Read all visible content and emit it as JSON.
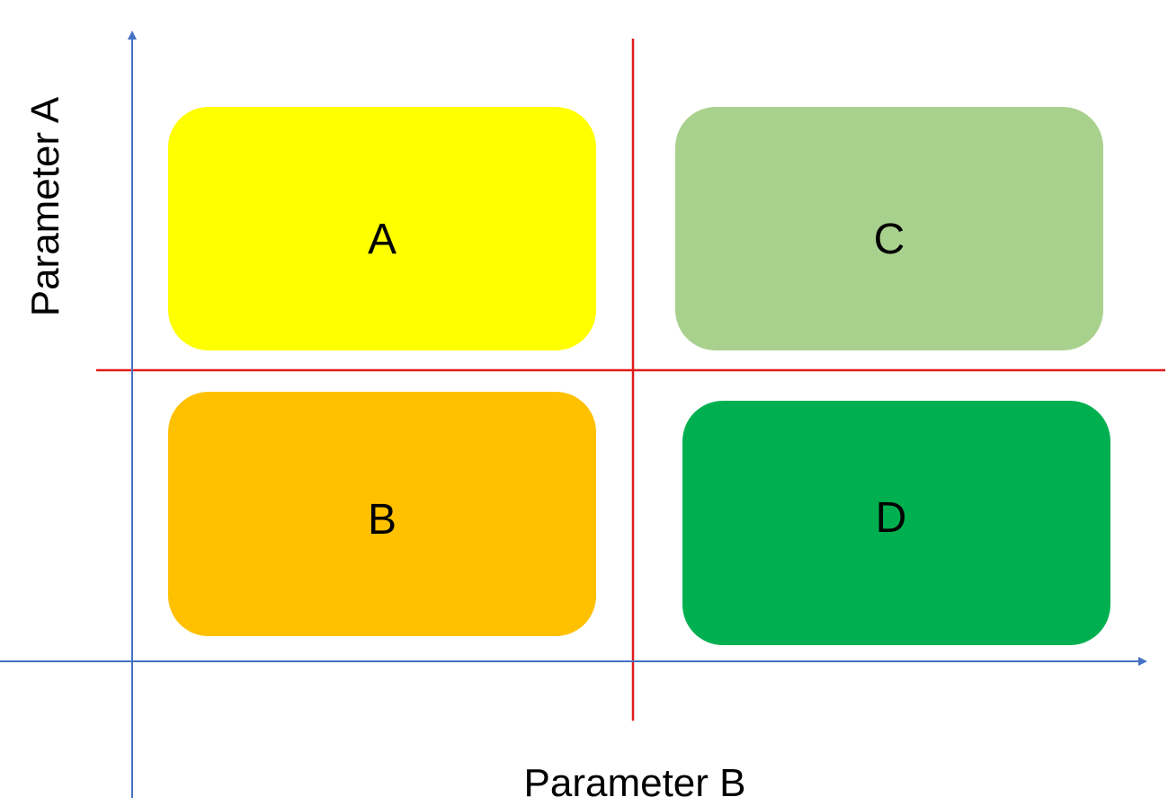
{
  "axes": {
    "y_label": "Parameter A",
    "x_label": "Parameter B",
    "axis_color": "#4472C4",
    "divider_color": "#E01B1B"
  },
  "quadrants": [
    {
      "label": "A",
      "color": "#FFFF00"
    },
    {
      "label": "C",
      "color": "#A9D18E"
    },
    {
      "label": "B",
      "color": "#FFC000"
    },
    {
      "label": "D",
      "color": "#00B050"
    }
  ]
}
